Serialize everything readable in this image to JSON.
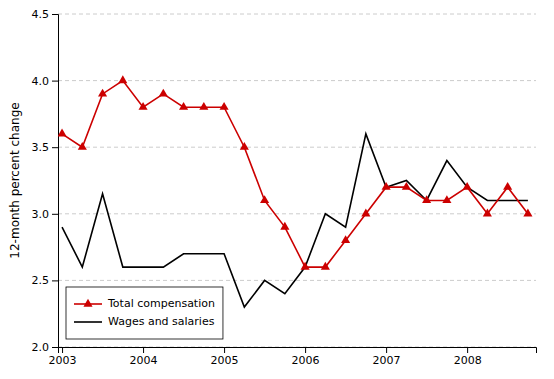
{
  "chart_data": {
    "type": "line",
    "y_label": "12-month percent change",
    "x": [
      2003.0,
      2003.25,
      2003.5,
      2003.75,
      2004.0,
      2004.25,
      2004.5,
      2004.75,
      2005.0,
      2005.25,
      2005.5,
      2005.75,
      2006.0,
      2006.25,
      2006.5,
      2006.75,
      2007.0,
      2007.25,
      2007.5,
      2007.75,
      2008.0,
      2008.25,
      2008.5,
      2008.75
    ],
    "series": [
      {
        "name": "Total compensation",
        "color": "#cc0000",
        "marker": "triangle",
        "values": [
          3.6,
          3.5,
          3.9,
          4.0,
          3.8,
          3.9,
          3.8,
          3.8,
          3.8,
          3.5,
          3.1,
          2.9,
          2.6,
          2.6,
          2.8,
          3.0,
          3.2,
          3.2,
          3.1,
          3.1,
          3.2,
          3.0,
          3.2,
          3.0
        ]
      },
      {
        "name": "Wages and salaries",
        "color": "#000000",
        "values": [
          2.9,
          2.6,
          3.15,
          2.6,
          2.6,
          2.6,
          2.7,
          2.7,
          2.7,
          2.3,
          2.5,
          2.4,
          2.6,
          3.0,
          2.9,
          3.6,
          3.2,
          3.25,
          3.1,
          3.4,
          3.2,
          3.1,
          3.1,
          3.1
        ]
      }
    ],
    "xlim": [
      2002.95,
      2008.85
    ],
    "xticks": [
      2003,
      2004,
      2005,
      2006,
      2007,
      2008
    ],
    "ylim": [
      2.0,
      4.5
    ],
    "yticks": [
      {
        "value": 2.0,
        "label": "2.0"
      },
      2.5,
      {
        "value": 3.0,
        "label": "3.0"
      },
      3.5,
      {
        "value": 4.0,
        "label": "4.0"
      },
      4.5
    ],
    "grid": true,
    "legend": "lower left"
  }
}
